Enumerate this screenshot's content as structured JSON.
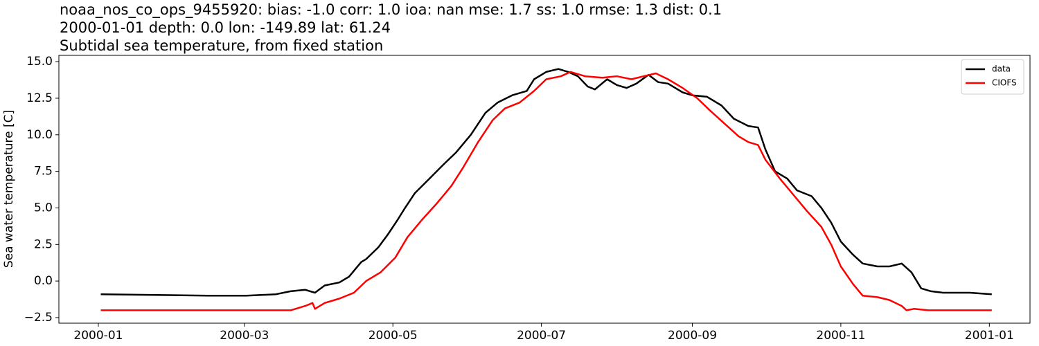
{
  "chart_data": {
    "type": "line",
    "title_lines": [
      "noaa_nos_co_ops_9455920: bias: -1.0  corr: 1.0  ioa: nan  mse: 1.7  ss: 1.0  rmse: 1.3  dist: 0.1",
      "2000-01-01 depth: 0.0 lon: -149.89 lat: 61.24",
      "Subtidal sea temperature, from fixed station"
    ],
    "y_label": "Sea water temperature [C]",
    "xlim": [
      -16.2,
      382.7
    ],
    "xticks": [
      {
        "value": 0,
        "label": "2000-01"
      },
      {
        "value": 60,
        "label": "2000-03"
      },
      {
        "value": 121,
        "label": "2000-05"
      },
      {
        "value": 182,
        "label": "2000-07"
      },
      {
        "value": 244,
        "label": "2000-09"
      },
      {
        "value": 305,
        "label": "2000-11"
      },
      {
        "value": 366,
        "label": "2001-01"
      }
    ],
    "ylim": [
      -2.88,
      15.43
    ],
    "yticks": [
      {
        "value": -2.5,
        "label": "−2.5"
      },
      {
        "value": 0,
        "label": "0.0"
      },
      {
        "value": 2.5,
        "label": "2.5"
      },
      {
        "value": 5,
        "label": "5.0"
      },
      {
        "value": 7.5,
        "label": "7.5"
      },
      {
        "value": 10,
        "label": "10.0"
      },
      {
        "value": 12.5,
        "label": "12.5"
      },
      {
        "value": 15,
        "label": "15.0"
      }
    ],
    "grid": false,
    "legend": "upper right",
    "series": [
      {
        "name": "data",
        "color": "#000000",
        "x": [
          1,
          45,
          61,
          73,
          79,
          85,
          89,
          93,
          99,
          103,
          108,
          110,
          115,
          119,
          123,
          126,
          130,
          136,
          142,
          147,
          153,
          159,
          164,
          170,
          176,
          179,
          184,
          189,
          193,
          197,
          201,
          204,
          209,
          213,
          217,
          221,
          226,
          230,
          234,
          240,
          244,
          250,
          256,
          261,
          267,
          271,
          274,
          278,
          283,
          287,
          293,
          297,
          301,
          305,
          310,
          314,
          320,
          325,
          330,
          334,
          338,
          342,
          347,
          358,
          367
        ],
        "values": [
          -0.9,
          -1.0,
          -1.0,
          -0.9,
          -0.7,
          -0.6,
          -0.8,
          -0.3,
          -0.1,
          0.3,
          1.3,
          1.5,
          2.3,
          3.2,
          4.2,
          5.0,
          6.0,
          7.0,
          8.0,
          8.8,
          10.0,
          11.5,
          12.2,
          12.7,
          13.0,
          13.8,
          14.3,
          14.5,
          14.3,
          14.0,
          13.3,
          13.1,
          13.8,
          13.4,
          13.2,
          13.5,
          14.1,
          13.6,
          13.5,
          12.9,
          12.7,
          12.6,
          12.0,
          11.1,
          10.6,
          10.5,
          9.0,
          7.5,
          7.0,
          6.2,
          5.8,
          5.0,
          4.0,
          2.7,
          1.8,
          1.2,
          1.0,
          1.0,
          1.2,
          0.6,
          -0.5,
          -0.7,
          -0.8,
          -0.8,
          -0.9
        ]
      },
      {
        "name": "CIOFS",
        "color": "#ff0000",
        "x": [
          1,
          45,
          79,
          85,
          88,
          89,
          93,
          99,
          105,
          110,
          116,
          122,
          127,
          133,
          139,
          145,
          150,
          156,
          162,
          167,
          173,
          179,
          184,
          190,
          194,
          200,
          207,
          213,
          219,
          224,
          229,
          234,
          240,
          246,
          251,
          257,
          263,
          267,
          271,
          274,
          280,
          285,
          291,
          297,
          301,
          305,
          310,
          314,
          320,
          325,
          330,
          332,
          335,
          341,
          367
        ],
        "values": [
          -2.0,
          -2.0,
          -2.0,
          -1.7,
          -1.5,
          -1.9,
          -1.5,
          -1.2,
          -0.8,
          0.0,
          0.6,
          1.6,
          3.0,
          4.2,
          5.3,
          6.5,
          7.8,
          9.5,
          11.0,
          11.8,
          12.2,
          13.0,
          13.8,
          14.0,
          14.3,
          14.0,
          13.9,
          14.0,
          13.8,
          14.0,
          14.2,
          13.8,
          13.2,
          12.5,
          11.7,
          10.8,
          9.9,
          9.5,
          9.3,
          8.3,
          7.0,
          6.0,
          4.8,
          3.7,
          2.5,
          1.0,
          -0.2,
          -1.0,
          -1.1,
          -1.3,
          -1.7,
          -2.0,
          -1.9,
          -2.0,
          -2.0
        ]
      }
    ]
  }
}
